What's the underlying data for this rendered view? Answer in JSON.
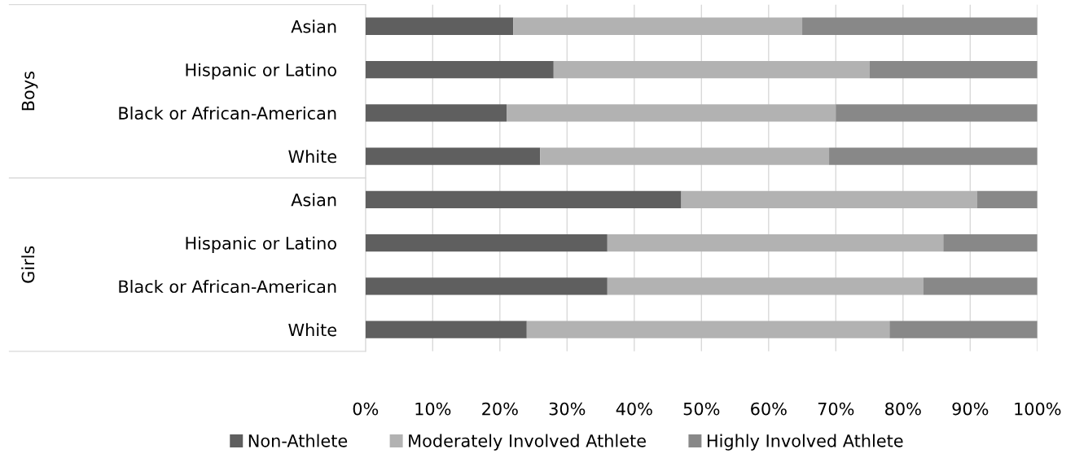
{
  "chart_data": {
    "type": "bar",
    "orientation": "horizontal",
    "stacked": true,
    "categories": [
      "Asian",
      "Hispanic or Latino",
      "Black or African-American",
      "White",
      "Asian",
      "Hispanic or Latino",
      "Black or African-American",
      "White"
    ],
    "series": [
      {
        "name": "Non-Athlete",
        "color": "#5f5f5f",
        "values": [
          22,
          28,
          21,
          26,
          47,
          36,
          36,
          24
        ]
      },
      {
        "name": "Moderately Involved Athlete",
        "color": "#b2b2b2",
        "values": [
          43,
          47,
          49,
          43,
          44,
          50,
          47,
          54
        ]
      },
      {
        "name": "Highly Involved Athlete",
        "color": "#888888",
        "values": [
          35,
          25,
          30,
          31,
          9,
          14,
          17,
          22
        ]
      }
    ],
    "annotations": [
      "Boys",
      "Girls"
    ],
    "xlim": [
      0,
      100
    ],
    "xticks": [
      {
        "value": 0,
        "label": "0%"
      },
      {
        "value": 10,
        "label": "10%"
      },
      {
        "value": 20,
        "label": "20%"
      },
      {
        "value": 30,
        "label": "30%"
      },
      {
        "value": 40,
        "label": "40%"
      },
      {
        "value": 50,
        "label": "50%"
      },
      {
        "value": 60,
        "label": "60%"
      },
      {
        "value": 70,
        "label": "70%"
      },
      {
        "value": 80,
        "label": "80%"
      },
      {
        "value": 90,
        "label": "90%"
      },
      {
        "value": 100,
        "label": "100%"
      }
    ],
    "grid": "x",
    "legend": "bottom"
  }
}
